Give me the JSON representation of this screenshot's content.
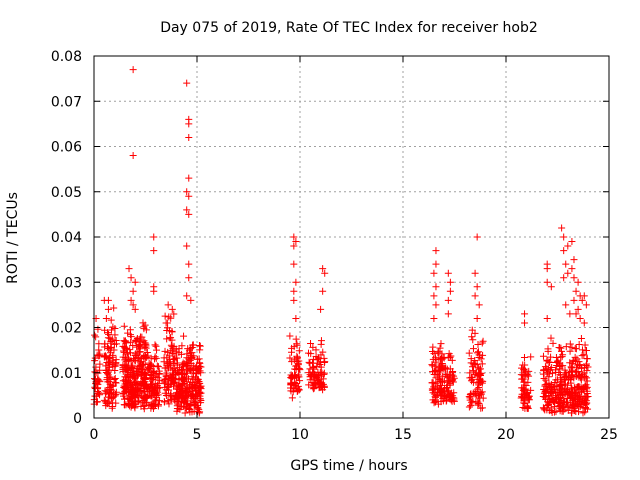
{
  "chart_data": {
    "type": "scatter",
    "title": "Day 075 of 2019, Rate Of TEC Index for receiver hob2",
    "xlabel": "GPS time / hours",
    "ylabel": "ROTI / TECUs",
    "xlim": [
      0,
      25
    ],
    "ylim": [
      0,
      0.08
    ],
    "grid": true,
    "marker": "+",
    "marker_color": "#ff0000",
    "x_ticks": [
      0,
      5,
      10,
      15,
      20,
      25
    ],
    "x_tick_labels": [
      "0",
      "5",
      "10",
      "15",
      "20",
      "25"
    ],
    "y_ticks": [
      0,
      0.01,
      0.02,
      0.03,
      0.04,
      0.05,
      0.06,
      0.07,
      0.08
    ],
    "y_tick_labels": [
      "0",
      "0.01",
      "0.02",
      "0.03",
      "0.04",
      "0.05",
      "0.06",
      "0.07",
      "0.08"
    ],
    "clusters": [
      {
        "x": [
          0.0,
          0.3
        ],
        "y": [
          0.003,
          0.022
        ],
        "n": 40
      },
      {
        "x": [
          0.5,
          1.1
        ],
        "y": [
          0.002,
          0.026
        ],
        "n": 110
      },
      {
        "x": [
          1.4,
          2.6
        ],
        "y": [
          0.002,
          0.022
        ],
        "n": 300
      },
      {
        "x": [
          2.6,
          3.2
        ],
        "y": [
          0.002,
          0.017
        ],
        "n": 90
      },
      {
        "x": [
          3.4,
          4.0
        ],
        "y": [
          0.003,
          0.024
        ],
        "n": 110
      },
      {
        "x": [
          4.0,
          5.2
        ],
        "y": [
          0.001,
          0.02
        ],
        "n": 240
      },
      {
        "x": [
          9.5,
          10.0
        ],
        "y": [
          0.003,
          0.02
        ],
        "n": 60
      },
      {
        "x": [
          10.4,
          11.2
        ],
        "y": [
          0.006,
          0.018
        ],
        "n": 80
      },
      {
        "x": [
          16.4,
          17.0
        ],
        "y": [
          0.003,
          0.018
        ],
        "n": 90
      },
      {
        "x": [
          17.0,
          17.5
        ],
        "y": [
          0.003,
          0.015
        ],
        "n": 60
      },
      {
        "x": [
          18.2,
          18.9
        ],
        "y": [
          0.002,
          0.02
        ],
        "n": 90
      },
      {
        "x": [
          20.7,
          21.2
        ],
        "y": [
          0.002,
          0.017
        ],
        "n": 60
      },
      {
        "x": [
          21.8,
          24.0
        ],
        "y": [
          0.001,
          0.018
        ],
        "n": 360
      }
    ],
    "points": [
      [
        0.1,
        0.022
      ],
      [
        0.1,
        0.01
      ],
      [
        0.1,
        0.008
      ],
      [
        0.5,
        0.026
      ],
      [
        0.7,
        0.026
      ],
      [
        0.7,
        0.024
      ],
      [
        0.6,
        0.022
      ],
      [
        1.7,
        0.033
      ],
      [
        1.8,
        0.031
      ],
      [
        1.9,
        0.077
      ],
      [
        1.9,
        0.058
      ],
      [
        2.0,
        0.03
      ],
      [
        1.9,
        0.028
      ],
      [
        1.9,
        0.025
      ],
      [
        2.0,
        0.024
      ],
      [
        1.8,
        0.026
      ],
      [
        2.9,
        0.04
      ],
      [
        2.9,
        0.037
      ],
      [
        2.9,
        0.029
      ],
      [
        2.9,
        0.028
      ],
      [
        3.6,
        0.025
      ],
      [
        3.8,
        0.024
      ],
      [
        3.5,
        0.021
      ],
      [
        4.5,
        0.074
      ],
      [
        4.6,
        0.066
      ],
      [
        4.6,
        0.065
      ],
      [
        4.6,
        0.062
      ],
      [
        4.6,
        0.053
      ],
      [
        4.5,
        0.05
      ],
      [
        4.6,
        0.049
      ],
      [
        4.5,
        0.046
      ],
      [
        4.6,
        0.045
      ],
      [
        4.5,
        0.038
      ],
      [
        4.6,
        0.034
      ],
      [
        4.6,
        0.031
      ],
      [
        4.5,
        0.027
      ],
      [
        4.7,
        0.026
      ],
      [
        9.7,
        0.04
      ],
      [
        9.8,
        0.039
      ],
      [
        9.7,
        0.038
      ],
      [
        9.7,
        0.034
      ],
      [
        9.8,
        0.03
      ],
      [
        9.7,
        0.028
      ],
      [
        9.7,
        0.026
      ],
      [
        9.8,
        0.022
      ],
      [
        11.1,
        0.033
      ],
      [
        11.2,
        0.032
      ],
      [
        11.1,
        0.028
      ],
      [
        11.0,
        0.024
      ],
      [
        16.6,
        0.037
      ],
      [
        16.6,
        0.034
      ],
      [
        16.5,
        0.032
      ],
      [
        16.6,
        0.029
      ],
      [
        16.5,
        0.027
      ],
      [
        16.6,
        0.025
      ],
      [
        16.5,
        0.022
      ],
      [
        17.2,
        0.032
      ],
      [
        17.3,
        0.03
      ],
      [
        17.3,
        0.028
      ],
      [
        17.2,
        0.026
      ],
      [
        17.2,
        0.023
      ],
      [
        18.6,
        0.04
      ],
      [
        18.5,
        0.032
      ],
      [
        18.6,
        0.029
      ],
      [
        18.5,
        0.027
      ],
      [
        18.7,
        0.025
      ],
      [
        18.6,
        0.022
      ],
      [
        20.9,
        0.023
      ],
      [
        20.9,
        0.021
      ],
      [
        22.0,
        0.034
      ],
      [
        22.0,
        0.033
      ],
      [
        22.0,
        0.03
      ],
      [
        22.2,
        0.029
      ],
      [
        22.0,
        0.022
      ],
      [
        22.7,
        0.042
      ],
      [
        22.8,
        0.04
      ],
      [
        22.8,
        0.037
      ],
      [
        23.0,
        0.038
      ],
      [
        22.9,
        0.034
      ],
      [
        23.2,
        0.039
      ],
      [
        23.3,
        0.035
      ],
      [
        23.2,
        0.033
      ],
      [
        23.3,
        0.031
      ],
      [
        23.0,
        0.032
      ],
      [
        22.8,
        0.031
      ],
      [
        23.5,
        0.03
      ],
      [
        23.4,
        0.028
      ],
      [
        23.6,
        0.027
      ],
      [
        23.7,
        0.026
      ],
      [
        23.9,
        0.025
      ],
      [
        23.5,
        0.024
      ],
      [
        23.8,
        0.027
      ],
      [
        23.6,
        0.022
      ],
      [
        23.4,
        0.023
      ],
      [
        23.1,
        0.023
      ],
      [
        22.9,
        0.025
      ],
      [
        23.3,
        0.026
      ],
      [
        23.8,
        0.021
      ]
    ]
  }
}
